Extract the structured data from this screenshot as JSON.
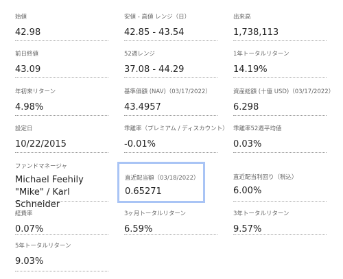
{
  "rows": [
    [
      {
        "label": "始値",
        "value": "42.98"
      },
      {
        "label": "安値 - 高値 レンジ（日）",
        "value": "42.85 - 43.54"
      },
      {
        "label": "出来高",
        "value": "1,738,113"
      }
    ],
    [
      {
        "label": "前日終値",
        "value": "43.09"
      },
      {
        "label": "52週レンジ",
        "value": "37.08 - 44.29"
      },
      {
        "label": "1年トータルリターン",
        "value": "14.19%"
      }
    ],
    [
      {
        "label": "年初来リターン",
        "value": "4.98%"
      },
      {
        "label": "基準価額 (NAV)（03/17/2022）",
        "value": "43.4957"
      },
      {
        "label": "資産総額 (十億 USD)（03/17/2022）",
        "value": "6.298"
      }
    ],
    [
      {
        "label": "設定日",
        "value": "10/22/2015"
      },
      {
        "label": "乖離率（プレミアム / ディスカウント）",
        "value": "-0.01%"
      },
      {
        "label": "乖離率52週平均値",
        "value": "0.03%"
      }
    ],
    [
      {
        "label": "ファンドマネージャ",
        "value": "Michael Feehily \"Mike\" / Karl Schneider"
      },
      {
        "label": "直近配当額（03/18/2022）",
        "value": "0.65271"
      },
      {
        "label": "直近配当利回り（税込）",
        "value": "6.00%"
      }
    ],
    [
      {
        "label": "経費率",
        "value": "0.07%"
      },
      {
        "label": "3ヶ月トータルリターン",
        "value": "6.59%"
      },
      {
        "label": "3年トータルリターン",
        "value": "9.57%"
      }
    ],
    [
      {
        "label": "5年トータルリターン",
        "value": "9.03%"
      }
    ]
  ]
}
